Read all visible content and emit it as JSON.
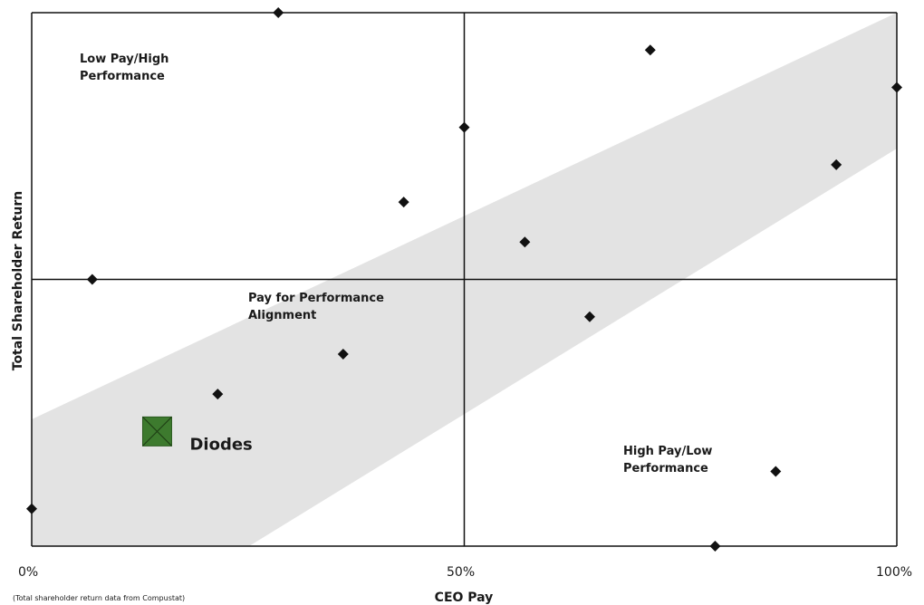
{
  "chart_data": {
    "type": "scatter",
    "title": "",
    "xlabel": "CEO Pay",
    "ylabel": "Total Shareholder Return",
    "xlim": [
      0,
      100
    ],
    "ylim": [
      0,
      100
    ],
    "x_ticks": [
      "0%",
      "50%",
      "100%"
    ],
    "grid": false,
    "quadrant_labels": {
      "top_left": [
        "Low Pay/High",
        "Performance"
      ],
      "center": [
        "Pay for Performance",
        "Alignment"
      ],
      "bottom_right": [
        "High Pay/Low",
        "Performance"
      ]
    },
    "highlight": {
      "label": "Diodes",
      "x": 14.5,
      "y": 21.5,
      "color": "#3d7a2e"
    },
    "band_color": "#e3e3e3",
    "point_color": "#111111",
    "points": [
      {
        "x": 0,
        "y": 7
      },
      {
        "x": 7,
        "y": 50
      },
      {
        "x": 21.5,
        "y": 28.5
      },
      {
        "x": 28.5,
        "y": 100
      },
      {
        "x": 36,
        "y": 36
      },
      {
        "x": 43,
        "y": 64.5
      },
      {
        "x": 50,
        "y": 78.5
      },
      {
        "x": 57,
        "y": 57
      },
      {
        "x": 64.5,
        "y": 43
      },
      {
        "x": 71.5,
        "y": 93
      },
      {
        "x": 79,
        "y": 0
      },
      {
        "x": 86,
        "y": 14
      },
      {
        "x": 93,
        "y": 71.5
      },
      {
        "x": 100,
        "y": 86
      }
    ],
    "source_note": "(Total shareholder return data from Compustat)"
  }
}
